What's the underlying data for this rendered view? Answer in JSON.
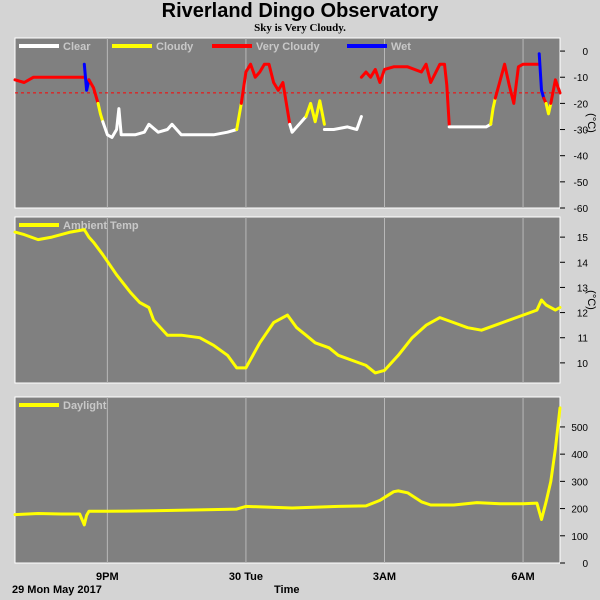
{
  "title": "Riverland Dingo Observatory",
  "subtitle": "Sky is Very Cloudy.",
  "footer": {
    "date": "29 Mon May 2017",
    "xlabel": "Time"
  },
  "x_ticks": [
    {
      "t": 2.0,
      "label": "9PM"
    },
    {
      "t": 5.0,
      "label": "30 Tue"
    },
    {
      "t": 8.0,
      "label": "3AM"
    },
    {
      "t": 11.0,
      "label": "6AM"
    }
  ],
  "colors": {
    "clear": "#ffffff",
    "cloudy": "#ffff00",
    "very_cloudy": "#ff0000",
    "wet": "#0000ff",
    "plot_bg": "#808080",
    "page_bg": "#d4d4d4"
  },
  "chart_data": [
    {
      "type": "line",
      "name": "sky",
      "legend": [
        {
          "label": "Clear",
          "color": "#ffffff"
        },
        {
          "label": "Cloudy",
          "color": "#ffff00"
        },
        {
          "label": "Very Cloudy",
          "color": "#ff0000"
        },
        {
          "label": "Wet",
          "color": "#0000ff"
        }
      ],
      "ylabel": "(°C)",
      "ylim": [
        -60,
        5
      ],
      "yticks": [
        0,
        -10,
        -20,
        -30,
        -40,
        -50,
        -60
      ],
      "threshold_dashed": -16,
      "xlim": [
        0,
        11.8
      ],
      "series": [
        {
          "x": [
            0.0,
            0.2,
            0.4,
            0.7,
            1.0,
            1.3,
            1.5
          ],
          "y": [
            -11,
            -12,
            -10,
            -10,
            -10,
            -10,
            -10
          ],
          "color": "#ff0000"
        },
        {
          "x": [
            1.5,
            1.55,
            1.6
          ],
          "y": [
            -5,
            -15,
            -11
          ],
          "color": "#0000ff"
        },
        {
          "x": [
            1.6,
            1.7,
            1.8
          ],
          "y": [
            -11,
            -14,
            -20
          ],
          "color": "#ff0000"
        },
        {
          "x": [
            1.8,
            1.85,
            1.9
          ],
          "y": [
            -20,
            -24,
            -27
          ],
          "color": "#ffff00"
        },
        {
          "x": [
            1.9,
            2.0,
            2.1,
            2.2,
            2.25,
            2.3,
            2.4,
            2.6,
            2.8,
            2.9,
            3.1,
            3.3,
            3.4,
            3.6,
            4.0,
            4.3,
            4.6,
            4.8
          ],
          "y": [
            -27,
            -32,
            -33,
            -30,
            -22,
            -32,
            -32,
            -32,
            -31,
            -28,
            -31,
            -30,
            -28,
            -32,
            -32,
            -32,
            -31,
            -30
          ],
          "color": "#ffffff"
        },
        {
          "x": [
            4.8,
            4.85,
            4.9
          ],
          "y": [
            -30,
            -25,
            -20
          ],
          "color": "#ffff00"
        },
        {
          "x": [
            4.9,
            5.0,
            5.1,
            5.2,
            5.3,
            5.4,
            5.5,
            5.6,
            5.7,
            5.8,
            5.95
          ],
          "y": [
            -20,
            -8,
            -5,
            -10,
            -8,
            -5,
            -5,
            -12,
            -15,
            -12,
            -28
          ],
          "color": "#ff0000"
        },
        {
          "x": [
            5.95,
            6.0,
            6.2,
            6.3
          ],
          "y": [
            -28,
            -31,
            -27,
            -25
          ],
          "color": "#ffffff"
        },
        {
          "x": [
            6.3,
            6.4,
            6.5,
            6.6,
            6.7
          ],
          "y": [
            -25,
            -20,
            -27,
            -19,
            -28
          ],
          "color": "#ffff00"
        },
        {
          "x": [
            6.7,
            6.9,
            7.2,
            7.4,
            7.5
          ],
          "y": [
            -30,
            -30,
            -29,
            -30,
            -25
          ],
          "color": "#ffffff"
        },
        {
          "x": [
            7.5,
            7.6,
            7.7,
            7.8,
            7.9,
            8.0,
            8.2,
            8.5,
            8.8,
            8.9,
            9.0,
            9.2,
            9.3,
            9.35,
            9.4
          ],
          "y": [
            -10,
            -8,
            -10,
            -7,
            -12,
            -7,
            -6,
            -6,
            -8,
            -5,
            -12,
            -5,
            -5,
            -13,
            -28
          ],
          "color": "#ff0000"
        },
        {
          "x": [
            9.4,
            9.6,
            9.9,
            10.2,
            10.3
          ],
          "y": [
            -29,
            -29,
            -29,
            -29,
            -28
          ],
          "color": "#ffffff"
        },
        {
          "x": [
            10.3,
            10.35,
            10.4
          ],
          "y": [
            -28,
            -22,
            -18
          ],
          "color": "#ffff00"
        },
        {
          "x": [
            10.4,
            10.6,
            10.7,
            10.8,
            10.9,
            11.0,
            11.2,
            11.35
          ],
          "y": [
            -18,
            -5,
            -13,
            -20,
            -6,
            -5,
            -5,
            -5
          ],
          "color": "#ff0000"
        },
        {
          "x": [
            11.35,
            11.4,
            11.45
          ],
          "y": [
            -1,
            -15,
            -18
          ],
          "color": "#0000ff"
        },
        {
          "x": [
            11.45,
            11.5
          ],
          "y": [
            -18,
            -20
          ],
          "color": "#ff0000"
        },
        {
          "x": [
            11.5,
            11.55,
            11.6
          ],
          "y": [
            -20,
            -24,
            -20
          ],
          "color": "#ffff00"
        },
        {
          "x": [
            11.6,
            11.7,
            11.8
          ],
          "y": [
            -20,
            -11,
            -16
          ],
          "color": "#ff0000"
        }
      ]
    },
    {
      "type": "line",
      "name": "ambient",
      "legend": [
        {
          "label": "Ambient Temp",
          "color": "#ffff00"
        }
      ],
      "ylabel": "(°C)",
      "ylim": [
        9.2,
        15.8
      ],
      "yticks": [
        10,
        11,
        12,
        13,
        14,
        15
      ],
      "xlim": [
        0,
        11.8
      ],
      "series": [
        {
          "x": [
            0.0,
            0.2,
            0.5,
            0.8,
            1.0,
            1.2,
            1.5,
            1.6,
            1.7,
            1.9,
            2.2,
            2.5,
            2.7,
            2.9,
            3.0,
            3.3,
            3.6,
            4.0,
            4.3,
            4.6,
            4.8,
            5.0,
            5.3,
            5.6,
            5.9,
            6.1,
            6.3,
            6.5,
            6.8,
            7.0,
            7.3,
            7.6,
            7.8,
            8.0,
            8.3,
            8.6,
            8.9,
            9.2,
            9.5,
            9.8,
            10.1,
            10.4,
            10.7,
            11.0,
            11.3,
            11.4,
            11.5,
            11.7,
            11.8
          ],
          "y": [
            15.2,
            15.1,
            14.9,
            15.0,
            15.1,
            15.2,
            15.3,
            15.0,
            14.8,
            14.3,
            13.5,
            12.8,
            12.4,
            12.2,
            11.7,
            11.1,
            11.1,
            11.0,
            10.7,
            10.3,
            9.8,
            9.8,
            10.8,
            11.6,
            11.9,
            11.4,
            11.1,
            10.8,
            10.6,
            10.3,
            10.1,
            9.9,
            9.6,
            9.7,
            10.3,
            11.0,
            11.5,
            11.8,
            11.6,
            11.4,
            11.3,
            11.5,
            11.7,
            11.9,
            12.1,
            12.5,
            12.3,
            12.1,
            12.2
          ],
          "color": "#ffff00"
        }
      ]
    },
    {
      "type": "line",
      "name": "daylight",
      "legend": [
        {
          "label": "Daylight",
          "color": "#ffff00"
        }
      ],
      "ylim": [
        0,
        610
      ],
      "yticks": [
        0,
        100,
        200,
        300,
        400,
        500
      ],
      "xlim": [
        0,
        11.8
      ],
      "series": [
        {
          "x": [
            0.0,
            0.5,
            1.0,
            1.4,
            1.5,
            1.55,
            1.6,
            2.0,
            3.0,
            4.0,
            4.8,
            5.0,
            6.0,
            7.0,
            7.6,
            7.9,
            8.2,
            8.3,
            8.5,
            8.8,
            9.0,
            9.5,
            10.0,
            10.5,
            11.0,
            11.3,
            11.4,
            11.5,
            11.6,
            11.7,
            11.8
          ],
          "y": [
            178,
            182,
            180,
            180,
            140,
            175,
            190,
            190,
            192,
            195,
            198,
            208,
            202,
            208,
            210,
            230,
            262,
            265,
            258,
            225,
            213,
            213,
            222,
            218,
            218,
            220,
            160,
            225,
            300,
            420,
            570
          ],
          "color": "#ffff00"
        }
      ]
    }
  ]
}
